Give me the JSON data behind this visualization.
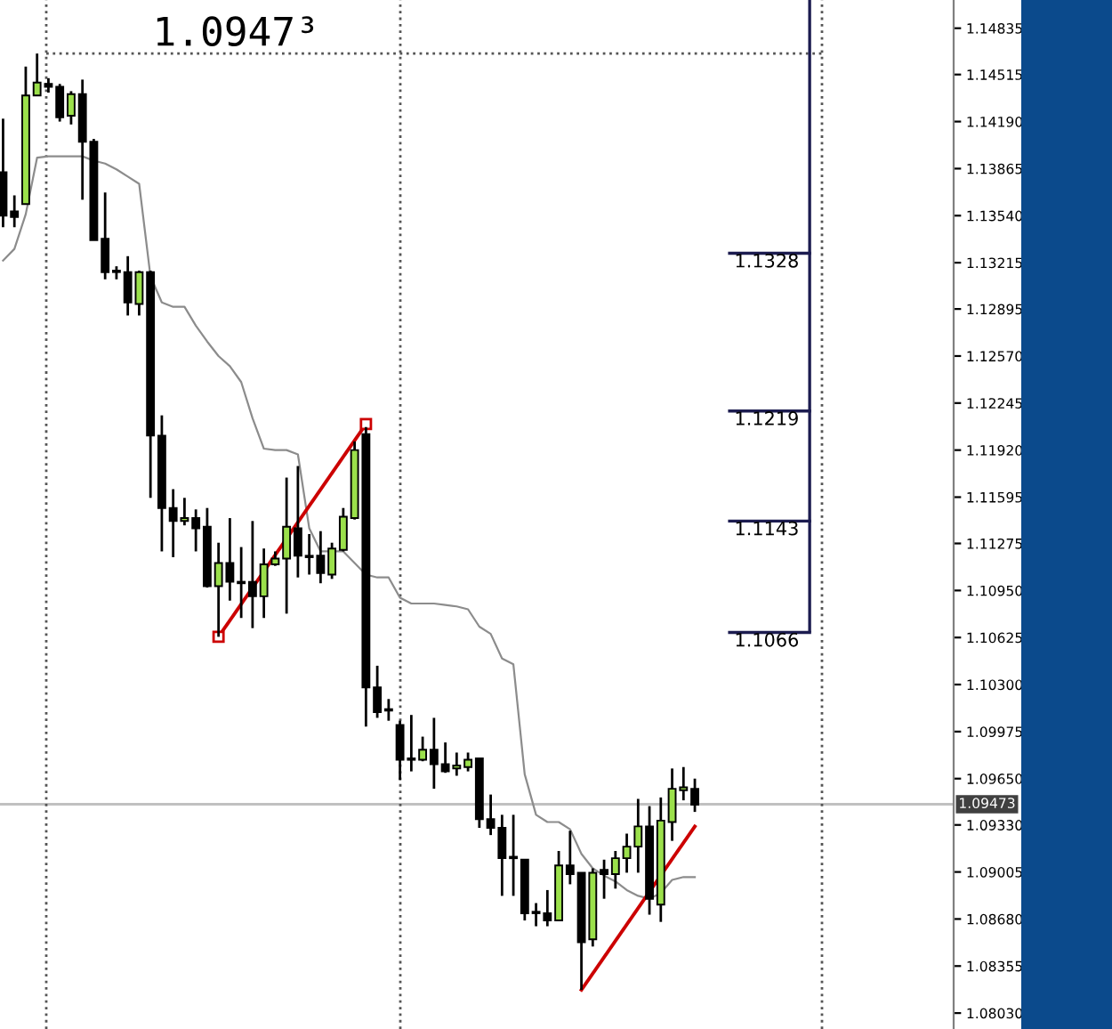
{
  "chart_data": {
    "type": "candlestick",
    "categories": [
      null,
      null,
      null,
      null,
      null,
      null,
      null,
      null,
      null,
      null,
      null,
      null,
      null,
      null,
      null,
      null,
      null,
      null,
      null,
      null,
      null,
      null,
      null,
      null,
      null,
      null,
      null,
      null,
      null,
      null,
      null,
      null,
      null,
      null,
      null,
      null,
      null,
      null,
      null,
      null,
      null,
      null,
      null,
      null,
      null,
      null,
      null,
      null,
      null,
      null,
      null,
      null,
      null,
      null,
      null,
      null,
      null,
      null,
      null,
      null,
      null,
      null
    ],
    "ohlc": [
      [
        1.1384,
        1.1421,
        1.1346,
        1.1354
      ],
      [
        1.1357,
        1.1368,
        1.1346,
        1.1353
      ],
      [
        1.1362,
        1.1457,
        1.1362,
        1.1437
      ],
      [
        1.1437,
        1.1466,
        1.1437,
        1.1446
      ],
      [
        1.1445,
        1.1449,
        1.1439,
        1.1443
      ],
      [
        1.1443,
        1.1445,
        1.1419,
        1.1422
      ],
      [
        1.1423,
        1.144,
        1.1417,
        1.1438
      ],
      [
        1.1438,
        1.1448,
        1.1365,
        1.1405
      ],
      [
        1.1405,
        1.1407,
        1.1337,
        1.1337
      ],
      [
        1.1338,
        1.137,
        1.131,
        1.1315
      ],
      [
        1.1316,
        1.1319,
        1.131,
        1.1315
      ],
      [
        1.1315,
        1.1326,
        1.1285,
        1.1294
      ],
      [
        1.1293,
        1.1316,
        1.1285,
        1.1315
      ],
      [
        1.1315,
        1.1316,
        1.1159,
        1.1202
      ],
      [
        1.1202,
        1.1216,
        1.1122,
        1.1152
      ],
      [
        1.1152,
        1.1165,
        1.1118,
        1.1143
      ],
      [
        1.1143,
        1.1159,
        1.114,
        1.1145
      ],
      [
        1.1145,
        1.1151,
        1.1122,
        1.1138
      ],
      [
        1.1139,
        1.1152,
        1.1097,
        1.1098
      ],
      [
        1.1098,
        1.1128,
        1.1063,
        1.1114
      ],
      [
        1.1114,
        1.1145,
        1.1088,
        1.1101
      ],
      [
        1.1101,
        1.1125,
        1.1076,
        1.11
      ],
      [
        1.1101,
        1.1143,
        1.1069,
        1.1091
      ],
      [
        1.1091,
        1.1124,
        1.1076,
        1.1113
      ],
      [
        1.1113,
        1.1122,
        1.1112,
        1.1117
      ],
      [
        1.1117,
        1.1173,
        1.1079,
        1.1139
      ],
      [
        1.1138,
        1.1181,
        1.1104,
        1.1119
      ],
      [
        1.1119,
        1.1134,
        1.1106,
        1.1118
      ],
      [
        1.1119,
        1.1136,
        1.11,
        1.1107
      ],
      [
        1.1106,
        1.1128,
        1.1103,
        1.1124
      ],
      [
        1.1123,
        1.1152,
        1.1122,
        1.1146
      ],
      [
        1.1145,
        1.1198,
        1.1144,
        1.1192
      ],
      [
        1.1203,
        1.1208,
        1.1001,
        1.1028
      ],
      [
        1.1028,
        1.1043,
        1.1007,
        1.1011
      ],
      [
        1.1013,
        1.102,
        1.1005,
        1.1012
      ],
      [
        1.1002,
        1.1005,
        1.0964,
        1.0978
      ],
      [
        1.0979,
        1.1009,
        1.097,
        1.0978
      ],
      [
        1.0978,
        1.0994,
        1.0977,
        1.0985
      ],
      [
        1.0985,
        1.1007,
        1.0958,
        1.0975
      ],
      [
        1.0975,
        1.099,
        1.0969,
        1.097
      ],
      [
        1.0972,
        1.0983,
        1.0967,
        1.0974
      ],
      [
        1.0973,
        1.0983,
        1.097,
        1.0978
      ],
      [
        1.0979,
        1.0979,
        1.0931,
        1.0937
      ],
      [
        1.0937,
        1.0954,
        1.0926,
        1.0931
      ],
      [
        1.0931,
        1.094,
        1.0884,
        1.091
      ],
      [
        1.0911,
        1.094,
        1.0884,
        1.091
      ],
      [
        1.0909,
        1.0909,
        1.0867,
        1.0872
      ],
      [
        1.0873,
        1.0879,
        1.0863,
        1.0872
      ],
      [
        1.0872,
        1.0888,
        1.0863,
        1.0867
      ],
      [
        1.0867,
        1.0915,
        1.0867,
        1.0905
      ],
      [
        1.0905,
        1.0929,
        1.0892,
        1.0899
      ],
      [
        1.09,
        1.09,
        1.0819,
        1.0852
      ],
      [
        1.0854,
        1.0903,
        1.0849,
        1.09
      ],
      [
        1.0902,
        1.0909,
        1.0882,
        1.0899
      ],
      [
        1.0899,
        1.0915,
        1.0889,
        1.091
      ],
      [
        1.091,
        1.0927,
        1.09,
        1.0918
      ],
      [
        1.0918,
        1.0951,
        1.09,
        1.0932
      ],
      [
        1.0932,
        1.0946,
        1.0871,
        1.0882
      ],
      [
        1.0878,
        1.0952,
        1.0866,
        1.0936
      ],
      [
        1.0935,
        1.0972,
        1.0922,
        1.0958
      ],
      [
        1.0957,
        1.0973,
        1.095,
        1.0959
      ],
      [
        1.0958,
        1.0965,
        1.0942,
        1.0947
      ]
    ],
    "colors": [
      "#000000",
      "#000000",
      "#9be04b",
      "#9be04b",
      "#000000",
      "#000000",
      "#9be04b",
      "#000000",
      "#000000",
      "#000000",
      "#000000",
      "#000000",
      "#9be04b",
      "#000000",
      "#000000",
      "#000000",
      "#9be04b",
      "#000000",
      "#000000",
      "#9be04b",
      "#000000",
      "#000000",
      "#000000",
      "#9be04b",
      "#9be04b",
      "#9be04b",
      "#000000",
      "#000000",
      "#000000",
      "#9be04b",
      "#9be04b",
      "#9be04b",
      "#000000",
      "#000000",
      "#000000",
      "#000000",
      "#000000",
      "#9be04b",
      "#000000",
      "#000000",
      "#9be04b",
      "#9be04b",
      "#000000",
      "#000000",
      "#000000",
      "#000000",
      "#000000",
      "#000000",
      "#000000",
      "#9be04b",
      "#000000",
      "#000000",
      "#9be04b",
      "#000000",
      "#9be04b",
      "#9be04b",
      "#9be04b",
      "#000000",
      "#9be04b",
      "#9be04b",
      "#9be04b",
      "#000000"
    ],
    "series": [
      {
        "type": "line",
        "color": "#8c8c8c",
        "values": [
          1.1323,
          1.1331,
          1.1355,
          1.1394,
          1.1395,
          1.1395,
          1.1395,
          1.1395,
          1.1392,
          1.139,
          1.1386,
          1.1381,
          1.1376,
          1.1312,
          1.1294,
          1.1291,
          1.1291,
          1.1278,
          1.1267,
          1.1257,
          1.125,
          1.1239,
          1.1214,
          1.1193,
          1.1192,
          1.1192,
          1.1189,
          1.1138,
          1.1122,
          1.1122,
          1.1122,
          1.1114,
          1.1106,
          1.1104,
          1.1104,
          1.109,
          1.1086,
          1.1086,
          1.1086,
          1.1085,
          1.1084,
          1.1082,
          1.107,
          1.1065,
          1.1048,
          1.1044,
          1.0968,
          1.094,
          1.0935,
          1.0935,
          1.093,
          1.0913,
          1.0903,
          1.0898,
          1.0894,
          1.0888,
          1.0884,
          1.0882,
          1.0886,
          1.0895,
          1.0897,
          1.0897
        ]
      },
      {
        "type": "line",
        "color": "#cc0000",
        "marker": "square",
        "values": [
          null,
          null,
          null,
          null,
          null,
          null,
          null,
          null,
          null,
          null,
          null,
          null,
          null,
          null,
          null,
          null,
          null,
          null,
          null,
          1.1063,
          null,
          null,
          null,
          null,
          null,
          null,
          null,
          null,
          null,
          null,
          null,
          null,
          1.121,
          null,
          null,
          null,
          null,
          null,
          null,
          null,
          null,
          null,
          null,
          null,
          null,
          null,
          null,
          null,
          null,
          null,
          null,
          null,
          null,
          null,
          null,
          null,
          null,
          null,
          null,
          null,
          null,
          null
        ]
      },
      {
        "type": "line",
        "color": "#cc0000",
        "values": [
          null,
          null,
          null,
          null,
          null,
          null,
          null,
          null,
          null,
          null,
          null,
          null,
          null,
          null,
          null,
          null,
          null,
          null,
          null,
          null,
          null,
          null,
          null,
          null,
          null,
          null,
          null,
          null,
          null,
          null,
          null,
          null,
          null,
          null,
          null,
          null,
          null,
          null,
          null,
          null,
          null,
          null,
          null,
          null,
          null,
          null,
          null,
          null,
          null,
          null,
          null,
          1.0819,
          null,
          null,
          null,
          null,
          null,
          null,
          null,
          null,
          null,
          1.0932
        ]
      }
    ],
    "ylim": [
      1.0792,
      1.1503
    ],
    "yticks": [
      1.14835,
      1.14515,
      {
        "value": 1.1419,
        "label": "1.14190"
      },
      1.13865,
      {
        "value": 1.1354,
        "label": "1.13540"
      },
      1.13215,
      1.12895,
      {
        "value": 1.1257,
        "label": "1.12570"
      },
      1.12245,
      {
        "value": 1.1192,
        "label": "1.11920"
      },
      1.11595,
      1.11275,
      {
        "value": 1.1095,
        "label": "1.10950"
      },
      1.10625,
      {
        "value": 1.103,
        "label": "1.10300"
      },
      1.09975,
      {
        "value": 1.0965,
        "label": "1.09650"
      },
      {
        "value": 1.0933,
        "label": "1.09330"
      },
      1.09005,
      {
        "value": 1.0868,
        "label": "1.08680"
      },
      1.08355,
      {
        "value": 1.0803,
        "label": "1.08030"
      }
    ],
    "tick_labels": "y",
    "ref_lines": [
      {
        "axis": "y",
        "value": 1.09473,
        "label": "1.09473",
        "color": "#c0c0c0",
        "line_style": "solid"
      },
      {
        "axis": "y",
        "value": 1.1328,
        "label": "1.1328",
        "color": "#1c1c50",
        "line_style": "solid"
      },
      {
        "axis": "y",
        "value": 1.1219,
        "label": "1.1219",
        "color": "#1c1c50",
        "line_style": "solid"
      },
      {
        "axis": "y",
        "value": 1.1143,
        "label": "1.1143",
        "color": "#1c1c50",
        "line_style": "solid"
      },
      {
        "axis": "y",
        "value": 1.1066,
        "label": "1.1066",
        "color": "#1c1c50",
        "line_style": "solid"
      },
      {
        "axis": "y",
        "value": 1.1466,
        "color": "#555555",
        "line_style": "dotted"
      }
    ],
    "annotations": [
      "1.0947³"
    ]
  }
}
